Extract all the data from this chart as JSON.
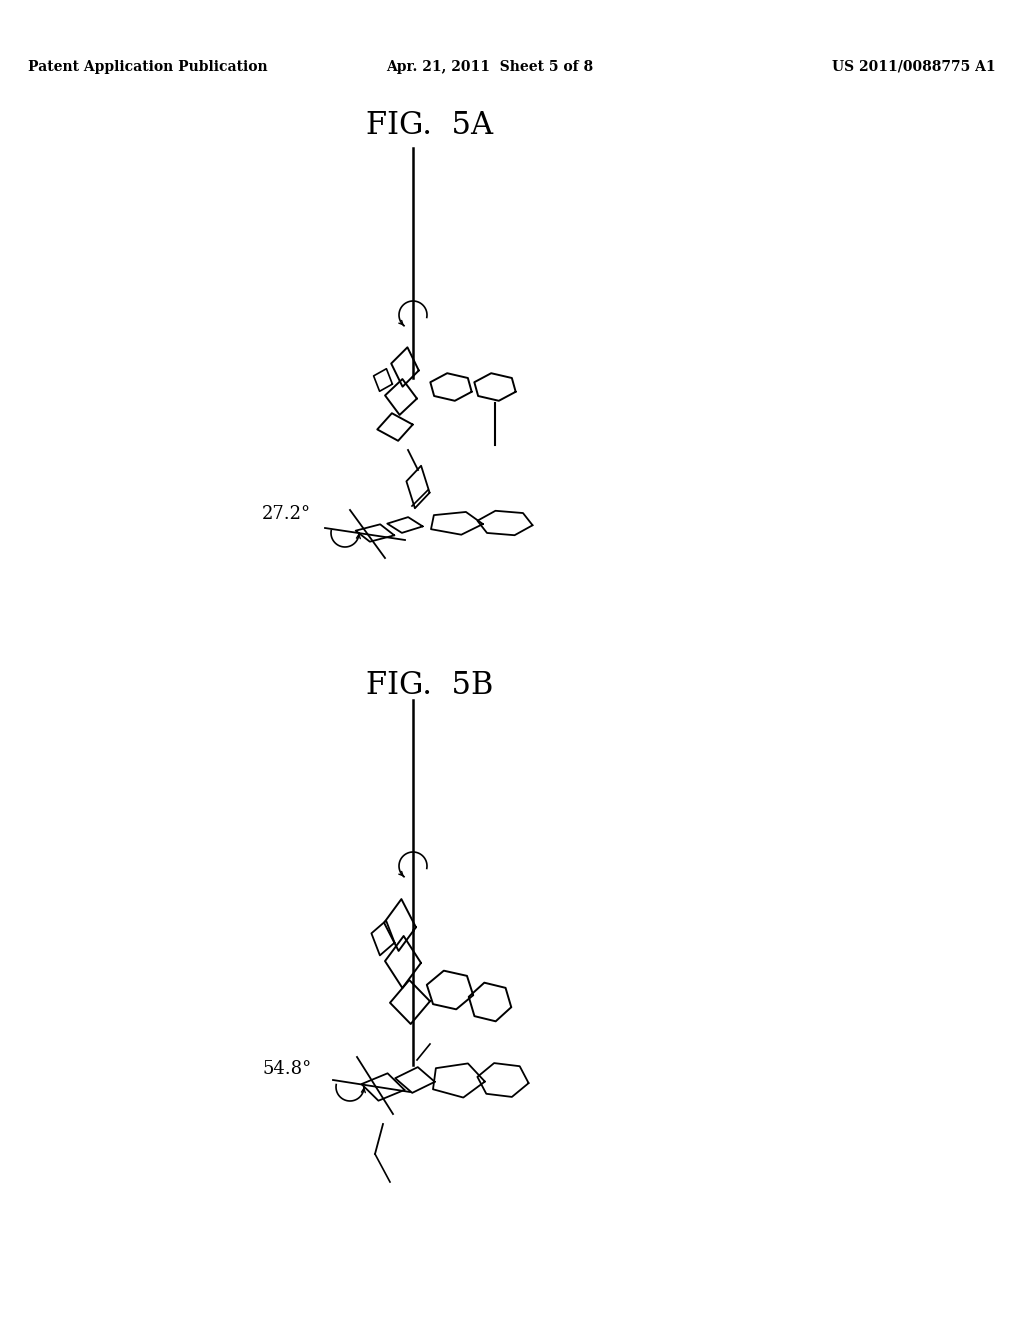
{
  "background_color": "#ffffff",
  "header_left": "Patent Application Publication",
  "header_center": "Apr. 21, 2011  Sheet 5 of 8",
  "header_right": "US 2011/0088775 A1",
  "fig5a_title": "FIG.  5A",
  "fig5b_title": "FIG.  5B",
  "angle_5a": "27.2°",
  "angle_5b": "54.8°"
}
